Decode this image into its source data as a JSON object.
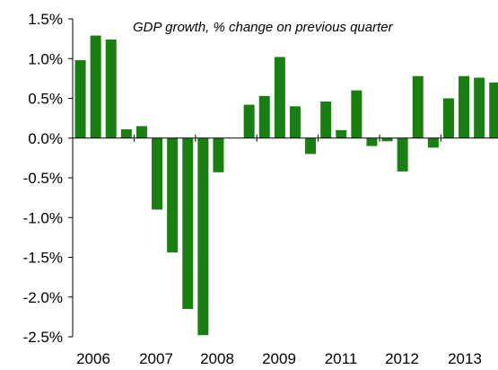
{
  "chart_data": {
    "type": "bar",
    "title": "GDP growth,  % change on previous quarter",
    "xlabel": "",
    "ylabel": "",
    "ylim": [
      -2.5,
      1.5
    ],
    "y_ticks": [
      1.5,
      1.0,
      0.5,
      0.0,
      -0.5,
      -1.0,
      -1.5,
      -2.0,
      -2.5
    ],
    "y_tick_labels": [
      "1.5%",
      "1.0%",
      "0.5%",
      "0.0%",
      "-0.5%",
      "-1.0%",
      "-1.5%",
      "-2.0%",
      "-2.5%"
    ],
    "x_tick_labels": [
      "2006",
      "2007",
      "2008",
      "2009",
      "2011",
      "2012",
      "2013"
    ],
    "grid": false,
    "legend": "none",
    "bar_color": "#1a7f11",
    "series": [
      {
        "values": [
          0.98,
          1.29,
          1.24,
          0.11,
          0.15,
          -0.9,
          -1.44,
          -2.15,
          -2.48,
          -0.43,
          null,
          0.42,
          0.53,
          1.02,
          0.4,
          -0.2,
          0.46,
          0.1,
          0.6,
          -0.1,
          -0.04,
          -0.42,
          0.78,
          -0.12,
          0.5,
          0.78,
          0.76,
          0.7
        ]
      }
    ]
  }
}
